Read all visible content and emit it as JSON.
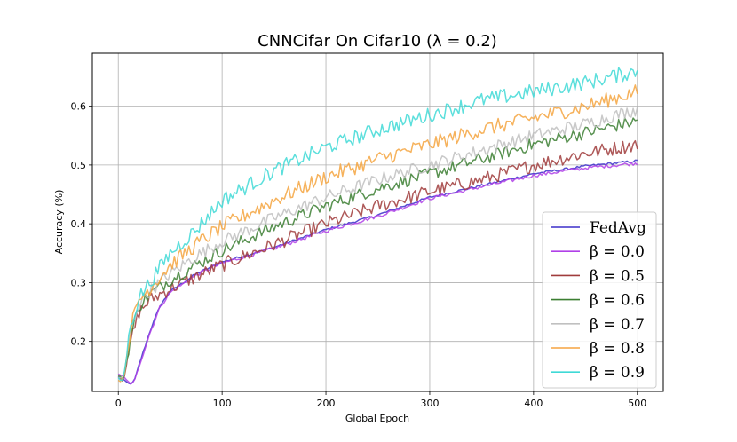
{
  "chart_data": {
    "type": "line",
    "title": "CNNCifar On Cifar10 (λ = 0.2)",
    "xlabel": "Global Epoch",
    "ylabel": "Accuracy (%)",
    "xlim": [
      -25,
      525
    ],
    "ylim": [
      0.115,
      0.69
    ],
    "xticks": [
      0,
      100,
      200,
      300,
      400,
      500
    ],
    "yticks": [
      0.2,
      0.3,
      0.4,
      0.5,
      0.6
    ],
    "ytick_labels": [
      "0.2",
      "0.3",
      "0.4",
      "0.5",
      "0.6"
    ],
    "grid": true,
    "legend_position": "lower-right",
    "series": [
      {
        "name": "FedAvg",
        "color": "#3b2fc9",
        "points": [
          [
            0,
            0.14
          ],
          [
            5,
            0.135
          ],
          [
            10,
            0.128
          ],
          [
            15,
            0.13
          ],
          [
            20,
            0.16
          ],
          [
            30,
            0.215
          ],
          [
            40,
            0.26
          ],
          [
            50,
            0.285
          ],
          [
            75,
            0.315
          ],
          [
            100,
            0.335
          ],
          [
            150,
            0.36
          ],
          [
            200,
            0.39
          ],
          [
            250,
            0.415
          ],
          [
            300,
            0.445
          ],
          [
            350,
            0.465
          ],
          [
            400,
            0.485
          ],
          [
            450,
            0.498
          ],
          [
            500,
            0.507
          ]
        ],
        "noise": 0.002
      },
      {
        "name": "β = 0.0",
        "color": "#b040e8",
        "points": [
          [
            0,
            0.145
          ],
          [
            5,
            0.14
          ],
          [
            10,
            0.13
          ],
          [
            15,
            0.128
          ],
          [
            20,
            0.158
          ],
          [
            30,
            0.212
          ],
          [
            40,
            0.258
          ],
          [
            50,
            0.283
          ],
          [
            75,
            0.313
          ],
          [
            100,
            0.333
          ],
          [
            150,
            0.358
          ],
          [
            200,
            0.388
          ],
          [
            250,
            0.413
          ],
          [
            300,
            0.443
          ],
          [
            350,
            0.463
          ],
          [
            400,
            0.482
          ],
          [
            450,
            0.495
          ],
          [
            500,
            0.503
          ]
        ],
        "noise": 0.003
      },
      {
        "name": "β = 0.5",
        "color": "#a03c3c",
        "points": [
          [
            0,
            0.14
          ],
          [
            5,
            0.135
          ],
          [
            12,
            0.2
          ],
          [
            20,
            0.25
          ],
          [
            30,
            0.27
          ],
          [
            50,
            0.29
          ],
          [
            75,
            0.31
          ],
          [
            100,
            0.33
          ],
          [
            150,
            0.365
          ],
          [
            200,
            0.4
          ],
          [
            250,
            0.43
          ],
          [
            300,
            0.455
          ],
          [
            350,
            0.475
          ],
          [
            400,
            0.5
          ],
          [
            450,
            0.52
          ],
          [
            500,
            0.535
          ]
        ],
        "noise": 0.012
      },
      {
        "name": "β = 0.6",
        "color": "#3c7f32",
        "points": [
          [
            0,
            0.14
          ],
          [
            5,
            0.135
          ],
          [
            12,
            0.21
          ],
          [
            20,
            0.26
          ],
          [
            30,
            0.28
          ],
          [
            50,
            0.305
          ],
          [
            75,
            0.33
          ],
          [
            100,
            0.355
          ],
          [
            150,
            0.395
          ],
          [
            200,
            0.43
          ],
          [
            250,
            0.46
          ],
          [
            300,
            0.485
          ],
          [
            350,
            0.51
          ],
          [
            400,
            0.535
          ],
          [
            450,
            0.555
          ],
          [
            500,
            0.575
          ]
        ],
        "noise": 0.011
      },
      {
        "name": "β = 0.7",
        "color": "#c0c0c0",
        "points": [
          [
            0,
            0.14
          ],
          [
            5,
            0.135
          ],
          [
            12,
            0.22
          ],
          [
            20,
            0.265
          ],
          [
            30,
            0.285
          ],
          [
            50,
            0.315
          ],
          [
            75,
            0.345
          ],
          [
            100,
            0.37
          ],
          [
            150,
            0.41
          ],
          [
            200,
            0.445
          ],
          [
            250,
            0.475
          ],
          [
            300,
            0.5
          ],
          [
            350,
            0.525
          ],
          [
            400,
            0.55
          ],
          [
            450,
            0.57
          ],
          [
            500,
            0.595
          ]
        ],
        "noise": 0.011
      },
      {
        "name": "β = 0.8",
        "color": "#f5a440",
        "points": [
          [
            0,
            0.135
          ],
          [
            5,
            0.135
          ],
          [
            12,
            0.225
          ],
          [
            20,
            0.27
          ],
          [
            30,
            0.29
          ],
          [
            50,
            0.33
          ],
          [
            75,
            0.365
          ],
          [
            100,
            0.395
          ],
          [
            150,
            0.44
          ],
          [
            200,
            0.48
          ],
          [
            250,
            0.51
          ],
          [
            300,
            0.535
          ],
          [
            350,
            0.56
          ],
          [
            400,
            0.58
          ],
          [
            450,
            0.6
          ],
          [
            500,
            0.625
          ]
        ],
        "noise": 0.013
      },
      {
        "name": "β = 0.9",
        "color": "#3fd9d6",
        "points": [
          [
            0,
            0.135
          ],
          [
            5,
            0.135
          ],
          [
            12,
            0.23
          ],
          [
            20,
            0.275
          ],
          [
            30,
            0.3
          ],
          [
            50,
            0.35
          ],
          [
            75,
            0.39
          ],
          [
            100,
            0.44
          ],
          [
            150,
            0.49
          ],
          [
            200,
            0.53
          ],
          [
            250,
            0.56
          ],
          [
            300,
            0.585
          ],
          [
            350,
            0.61
          ],
          [
            400,
            0.625
          ],
          [
            450,
            0.64
          ],
          [
            500,
            0.66
          ]
        ],
        "noise": 0.013
      }
    ]
  }
}
